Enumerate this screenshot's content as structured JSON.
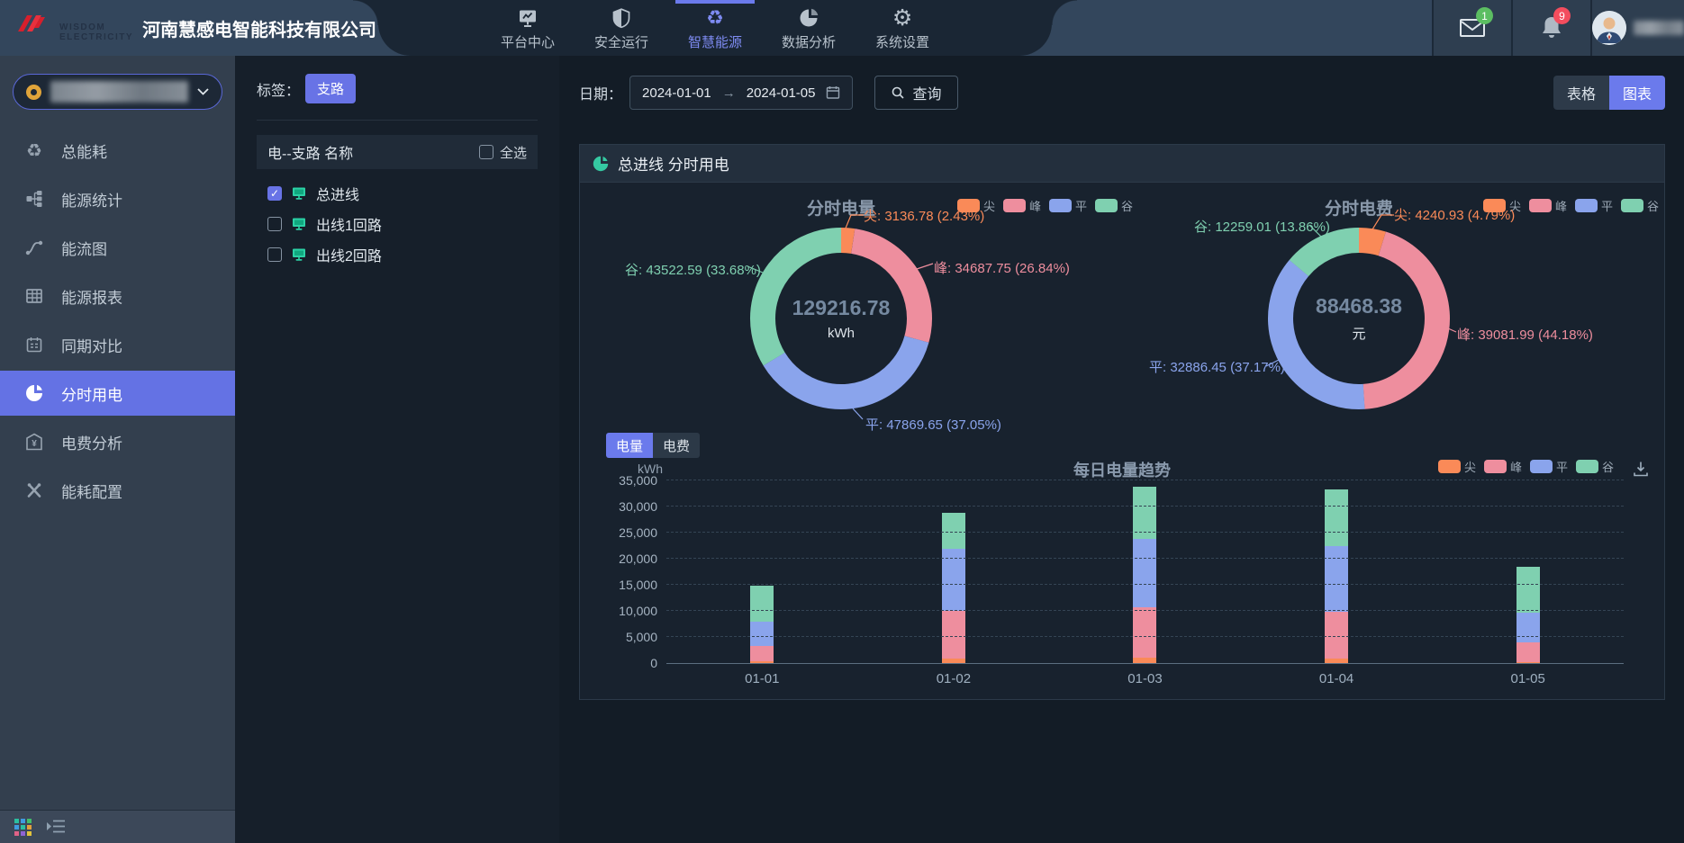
{
  "palette": {
    "尖": "#fa8a58",
    "峰": "#ee8e9e",
    "平": "#8aa4ec",
    "谷": "#7fd0b0"
  },
  "colors": {
    "accent": "#6b7aec",
    "mail_badge": "#5cbe62",
    "bell_badge": "#f34d5e",
    "device_icon": "#2bd1a5"
  },
  "header": {
    "company": "河南慧感电智能科技有限公司",
    "logo_text1": "WISDOM",
    "logo_text2": "ELECTRICITY",
    "nav": [
      {
        "label": "平台中心"
      },
      {
        "label": "安全运行"
      },
      {
        "label": "智慧能源"
      },
      {
        "label": "数据分析"
      },
      {
        "label": "系统设置"
      }
    ],
    "mail_badge": "1",
    "bell_badge": "9"
  },
  "sidebar": {
    "items": [
      {
        "label": "总能耗"
      },
      {
        "label": "能源统计"
      },
      {
        "label": "能流图"
      },
      {
        "label": "能源报表"
      },
      {
        "label": "同期对比"
      },
      {
        "label": "分时用电"
      },
      {
        "label": "电费分析"
      },
      {
        "label": "能耗配置"
      }
    ]
  },
  "tree": {
    "tag_label": "标签：",
    "tag_value": "支路",
    "list_header": "电--支路 名称",
    "select_all_label": "全选",
    "items": [
      {
        "label": "总进线",
        "checked": true
      },
      {
        "label": "出线1回路",
        "checked": false
      },
      {
        "label": "出线2回路",
        "checked": false
      }
    ]
  },
  "toolbar": {
    "date_label": "日期：",
    "date_start": "2024-01-01",
    "date_end": "2024-01-05",
    "query_label": "查询",
    "table_label": "表格",
    "chart_label": "图表"
  },
  "panel": {
    "title": "总进线 分时用电",
    "legend_names": [
      "尖",
      "峰",
      "平",
      "谷"
    ],
    "tabs": [
      {
        "label": "电量",
        "active": true
      },
      {
        "label": "电费",
        "active": false
      }
    ]
  },
  "chart_data": [
    {
      "type": "pie",
      "title": "分时电量",
      "center_value": "129216.78",
      "center_unit": "kWh",
      "labels": [
        "尖",
        "峰",
        "平",
        "谷"
      ],
      "values": [
        3136.78,
        34687.75,
        47869.65,
        43522.59
      ],
      "pcts": [
        2.43,
        26.84,
        37.05,
        33.68
      ],
      "callouts": [
        "尖: 3136.78 (2.43%)",
        "峰: 34687.75 (26.84%)",
        "平: 47869.65 (37.05%)",
        "谷: 43522.59 (33.68%)"
      ],
      "legend": [
        "尖",
        "峰",
        "平",
        "谷"
      ],
      "legend_position": "top-right"
    },
    {
      "type": "pie",
      "title": "分时电费",
      "center_value": "88468.38",
      "center_unit": "元",
      "labels": [
        "尖",
        "峰",
        "平",
        "谷"
      ],
      "values": [
        4240.93,
        39081.99,
        32886.45,
        12259.01
      ],
      "pcts": [
        4.79,
        44.18,
        37.17,
        13.86
      ],
      "callouts": [
        "尖: 4240.93 (4.79%)",
        "峰: 39081.99 (44.18%)",
        "平: 32886.45 (37.17%)",
        "谷: 12259.01 (13.86%)"
      ],
      "legend": [
        "尖",
        "峰",
        "平",
        "谷"
      ],
      "legend_position": "top-right"
    },
    {
      "type": "bar",
      "stacked": true,
      "title": "每日电量趋势",
      "ylabel": "kWh",
      "categories": [
        "01-01",
        "01-02",
        "01-03",
        "01-04",
        "01-05"
      ],
      "series": [
        {
          "name": "尖",
          "values": [
            320,
            870,
            1050,
            800,
            100
          ]
        },
        {
          "name": "峰",
          "values": [
            3000,
            9100,
            9700,
            9050,
            3840
          ]
        },
        {
          "name": "平",
          "values": [
            4650,
            11900,
            13000,
            12600,
            5720
          ]
        },
        {
          "name": "谷",
          "values": [
            6800,
            7000,
            10000,
            10900,
            8820
          ]
        }
      ],
      "ylim": [
        0,
        35000
      ],
      "yticks": [
        0,
        5000,
        10000,
        15000,
        20000,
        25000,
        30000,
        35000
      ],
      "legend": [
        "尖",
        "峰",
        "平",
        "谷"
      ],
      "legend_position": "top-right",
      "grid": true
    }
  ]
}
